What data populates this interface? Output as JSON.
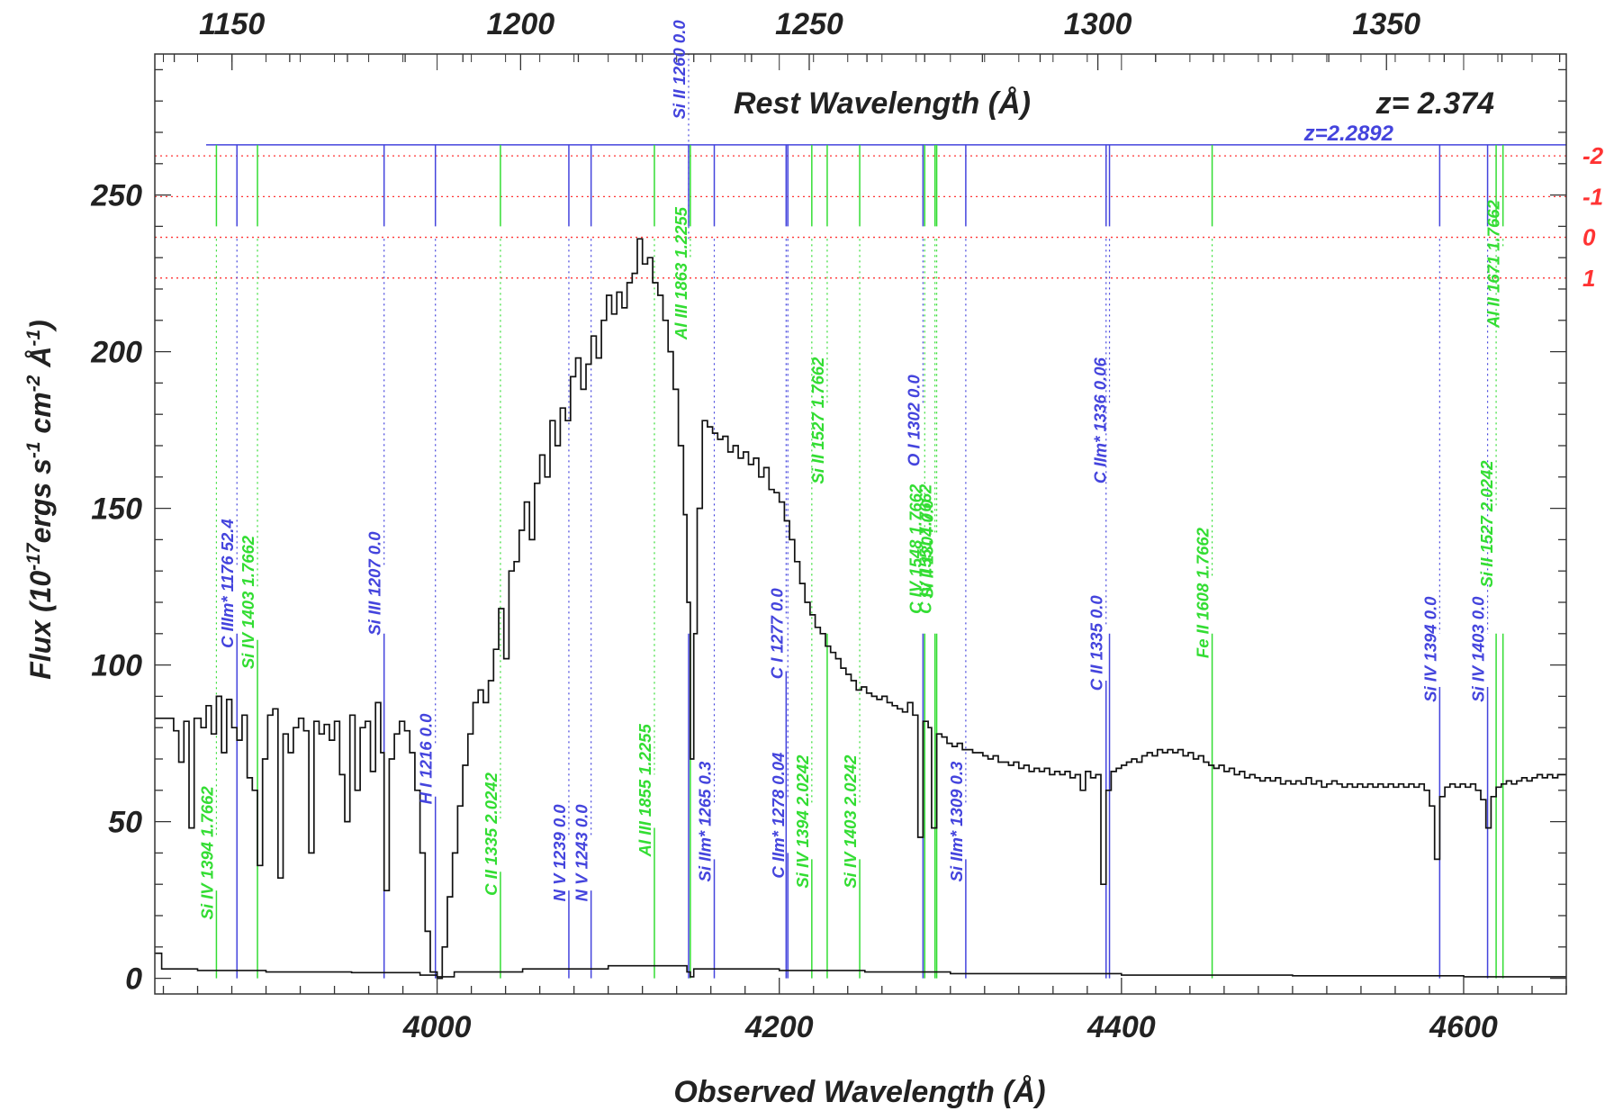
{
  "chart_data": {
    "type": "line",
    "xlabel": "Observed Wavelength (Å)",
    "ylabel": "Flux (10^-17 ergs s^-1 cm^-2 Å^-1)",
    "top_axis_label": "Rest Wavelength (Å)",
    "redshift_label": "z= 2.374",
    "absorber_label": "z=2.2892",
    "redshift": 2.374,
    "xlim": [
      3835,
      4660
    ],
    "ylim": [
      -5,
      295
    ],
    "x_ticks": [
      4000,
      4200,
      4400,
      4600
    ],
    "y_ticks": [
      0,
      50,
      100,
      150,
      200,
      250
    ],
    "top_ticks": [
      1150,
      1200,
      1250,
      1300,
      1350
    ],
    "sigma_levels": [
      {
        "label": "-2",
        "y": 262.5
      },
      {
        "label": "-1",
        "y": 249.5
      },
      {
        "label": "0",
        "y": 236.5
      },
      {
        "label": "1",
        "y": 223.5
      }
    ],
    "spectrum": {
      "name": "flux",
      "points": [
        [
          3835,
          83
        ],
        [
          3842,
          83
        ],
        [
          3846,
          79
        ],
        [
          3849,
          69
        ],
        [
          3852,
          82
        ],
        [
          3855,
          48
        ],
        [
          3858,
          83
        ],
        [
          3862,
          80
        ],
        [
          3865,
          87
        ],
        [
          3868,
          78
        ],
        [
          3871,
          90
        ],
        [
          3874,
          72
        ],
        [
          3877,
          89
        ],
        [
          3880,
          80
        ],
        [
          3883,
          76
        ],
        [
          3886,
          84
        ],
        [
          3889,
          64
        ],
        [
          3892,
          60
        ],
        [
          3895,
          36
        ],
        [
          3898,
          70
        ],
        [
          3901,
          84
        ],
        [
          3904,
          86
        ],
        [
          3907,
          32
        ],
        [
          3910,
          78
        ],
        [
          3913,
          72
        ],
        [
          3916,
          80
        ],
        [
          3919,
          83
        ],
        [
          3922,
          79
        ],
        [
          3925,
          40
        ],
        [
          3928,
          82
        ],
        [
          3931,
          78
        ],
        [
          3934,
          81
        ],
        [
          3937,
          76
        ],
        [
          3940,
          82
        ],
        [
          3943,
          65
        ],
        [
          3946,
          50
        ],
        [
          3949,
          84
        ],
        [
          3952,
          60
        ],
        [
          3955,
          80
        ],
        [
          3958,
          82
        ],
        [
          3961,
          66
        ],
        [
          3964,
          88
        ],
        [
          3967,
          72
        ],
        [
          3969,
          28
        ],
        [
          3972,
          70
        ],
        [
          3975,
          78
        ],
        [
          3978,
          82
        ],
        [
          3981,
          79
        ],
        [
          3984,
          72
        ],
        [
          3987,
          60
        ],
        [
          3990,
          40
        ],
        [
          3993,
          15
        ],
        [
          3996,
          2
        ],
        [
          4000,
          0
        ],
        [
          4003,
          10
        ],
        [
          4006,
          26
        ],
        [
          4009,
          40
        ],
        [
          4012,
          55
        ],
        [
          4015,
          68
        ],
        [
          4018,
          78
        ],
        [
          4021,
          88
        ],
        [
          4024,
          92
        ],
        [
          4027,
          88
        ],
        [
          4030,
          95
        ],
        [
          4033,
          105
        ],
        [
          4036,
          118
        ],
        [
          4039,
          102
        ],
        [
          4042,
          130
        ],
        [
          4045,
          133
        ],
        [
          4048,
          143
        ],
        [
          4051,
          152
        ],
        [
          4054,
          140
        ],
        [
          4057,
          158
        ],
        [
          4060,
          167
        ],
        [
          4063,
          160
        ],
        [
          4066,
          178
        ],
        [
          4069,
          170
        ],
        [
          4072,
          182
        ],
        [
          4075,
          178
        ],
        [
          4078,
          192
        ],
        [
          4081,
          198
        ],
        [
          4084,
          188
        ],
        [
          4087,
          196
        ],
        [
          4090,
          205
        ],
        [
          4093,
          198
        ],
        [
          4096,
          210
        ],
        [
          4099,
          218
        ],
        [
          4102,
          212
        ],
        [
          4105,
          219
        ],
        [
          4108,
          214
        ],
        [
          4111,
          222
        ],
        [
          4114,
          225
        ],
        [
          4117,
          236
        ],
        [
          4120,
          228
        ],
        [
          4123,
          230
        ],
        [
          4126,
          222
        ],
        [
          4129,
          218
        ],
        [
          4132,
          210
        ],
        [
          4135,
          200
        ],
        [
          4138,
          188
        ],
        [
          4141,
          170
        ],
        [
          4144,
          148
        ],
        [
          4146,
          120
        ],
        [
          4148,
          70
        ],
        [
          4150,
          110
        ],
        [
          4152,
          150
        ],
        [
          4155,
          178
        ],
        [
          4158,
          176
        ],
        [
          4161,
          174
        ],
        [
          4164,
          172
        ],
        [
          4167,
          173
        ],
        [
          4170,
          168
        ],
        [
          4173,
          170
        ],
        [
          4176,
          166
        ],
        [
          4179,
          168
        ],
        [
          4182,
          164
        ],
        [
          4185,
          166
        ],
        [
          4188,
          160
        ],
        [
          4191,
          163
        ],
        [
          4194,
          156
        ],
        [
          4197,
          155
        ],
        [
          4200,
          152
        ],
        [
          4203,
          146
        ],
        [
          4206,
          140
        ],
        [
          4209,
          133
        ],
        [
          4212,
          126
        ],
        [
          4215,
          120
        ],
        [
          4218,
          116
        ],
        [
          4221,
          112
        ],
        [
          4224,
          110
        ],
        [
          4227,
          106
        ],
        [
          4230,
          104
        ],
        [
          4233,
          102
        ],
        [
          4236,
          99
        ],
        [
          4239,
          97
        ],
        [
          4242,
          95
        ],
        [
          4245,
          92
        ],
        [
          4248,
          93
        ],
        [
          4251,
          91
        ],
        [
          4254,
          90
        ],
        [
          4257,
          89
        ],
        [
          4260,
          90
        ],
        [
          4263,
          88
        ],
        [
          4266,
          87
        ],
        [
          4269,
          86
        ],
        [
          4272,
          85
        ],
        [
          4275,
          88
        ],
        [
          4278,
          84
        ],
        [
          4281,
          45
        ],
        [
          4284,
          82
        ],
        [
          4287,
          80
        ],
        [
          4289,
          48
        ],
        [
          4292,
          78
        ],
        [
          4295,
          77
        ],
        [
          4298,
          75
        ],
        [
          4301,
          74
        ],
        [
          4304,
          75
        ],
        [
          4307,
          73
        ],
        [
          4310,
          73
        ],
        [
          4313,
          72
        ],
        [
          4316,
          72
        ],
        [
          4319,
          71
        ],
        [
          4322,
          70
        ],
        [
          4325,
          71
        ],
        [
          4328,
          69
        ],
        [
          4331,
          69
        ],
        [
          4334,
          68
        ],
        [
          4337,
          69
        ],
        [
          4340,
          67
        ],
        [
          4343,
          68
        ],
        [
          4346,
          66
        ],
        [
          4349,
          67
        ],
        [
          4352,
          66
        ],
        [
          4355,
          67
        ],
        [
          4358,
          65
        ],
        [
          4361,
          66
        ],
        [
          4364,
          65
        ],
        [
          4367,
          66
        ],
        [
          4370,
          64
        ],
        [
          4373,
          65
        ],
        [
          4376,
          60
        ],
        [
          4379,
          66
        ],
        [
          4382,
          64
        ],
        [
          4385,
          65
        ],
        [
          4388,
          30
        ],
        [
          4391,
          60
        ],
        [
          4394,
          66
        ],
        [
          4397,
          67
        ],
        [
          4400,
          68
        ],
        [
          4403,
          69
        ],
        [
          4406,
          70
        ],
        [
          4409,
          69
        ],
        [
          4412,
          71
        ],
        [
          4415,
          72
        ],
        [
          4418,
          71
        ],
        [
          4421,
          73
        ],
        [
          4424,
          72
        ],
        [
          4427,
          73
        ],
        [
          4430,
          72
        ],
        [
          4433,
          73
        ],
        [
          4436,
          71
        ],
        [
          4439,
          72
        ],
        [
          4442,
          70
        ],
        [
          4445,
          71
        ],
        [
          4448,
          69
        ],
        [
          4451,
          68
        ],
        [
          4454,
          67
        ],
        [
          4457,
          68
        ],
        [
          4460,
          66
        ],
        [
          4463,
          67
        ],
        [
          4466,
          65
        ],
        [
          4469,
          66
        ],
        [
          4472,
          64
        ],
        [
          4475,
          65
        ],
        [
          4478,
          64
        ],
        [
          4481,
          63
        ],
        [
          4484,
          64
        ],
        [
          4487,
          63
        ],
        [
          4490,
          64
        ],
        [
          4493,
          62
        ],
        [
          4496,
          63
        ],
        [
          4499,
          62
        ],
        [
          4502,
          63
        ],
        [
          4505,
          62
        ],
        [
          4508,
          64
        ],
        [
          4511,
          62
        ],
        [
          4514,
          63
        ],
        [
          4517,
          61
        ],
        [
          4520,
          62
        ],
        [
          4523,
          63
        ],
        [
          4526,
          62
        ],
        [
          4529,
          61
        ],
        [
          4532,
          62
        ],
        [
          4535,
          61
        ],
        [
          4538,
          62
        ],
        [
          4541,
          61
        ],
        [
          4544,
          62
        ],
        [
          4547,
          61
        ],
        [
          4550,
          62
        ],
        [
          4553,
          61
        ],
        [
          4556,
          62
        ],
        [
          4559,
          61
        ],
        [
          4562,
          62
        ],
        [
          4565,
          61
        ],
        [
          4568,
          62
        ],
        [
          4571,
          61
        ],
        [
          4574,
          62
        ],
        [
          4577,
          60
        ],
        [
          4580,
          55
        ],
        [
          4583,
          38
        ],
        [
          4586,
          58
        ],
        [
          4589,
          61
        ],
        [
          4592,
          62
        ],
        [
          4595,
          61
        ],
        [
          4598,
          62
        ],
        [
          4601,
          61
        ],
        [
          4604,
          62
        ],
        [
          4607,
          60
        ],
        [
          4610,
          57
        ],
        [
          4613,
          48
        ],
        [
          4616,
          58
        ],
        [
          4619,
          61
        ],
        [
          4622,
          62
        ],
        [
          4625,
          63
        ],
        [
          4628,
          62
        ],
        [
          4631,
          63
        ],
        [
          4634,
          64
        ],
        [
          4637,
          63
        ],
        [
          4640,
          64
        ],
        [
          4643,
          65
        ],
        [
          4646,
          64
        ],
        [
          4649,
          65
        ],
        [
          4652,
          64
        ],
        [
          4655,
          65
        ],
        [
          4660,
          65
        ]
      ]
    },
    "error_spectrum": {
      "name": "error",
      "points": [
        [
          3835,
          8
        ],
        [
          3838,
          8
        ],
        [
          3839,
          3
        ],
        [
          3860,
          2.5
        ],
        [
          3900,
          2
        ],
        [
          3950,
          1.8
        ],
        [
          3990,
          1
        ],
        [
          4000,
          0.5
        ],
        [
          4010,
          2
        ],
        [
          4050,
          3
        ],
        [
          4100,
          4
        ],
        [
          4120,
          4
        ],
        [
          4146,
          2
        ],
        [
          4148,
          0.5
        ],
        [
          4150,
          3
        ],
        [
          4200,
          2.5
        ],
        [
          4250,
          2
        ],
        [
          4300,
          1.5
        ],
        [
          4400,
          1
        ],
        [
          4500,
          0.8
        ],
        [
          4600,
          0.5
        ],
        [
          4660,
          0.5
        ]
      ]
    },
    "line_markers": [
      {
        "x": 3871,
        "color": "#33dd33",
        "label": "Si IV 1394 1.7662",
        "label_y": 40
      },
      {
        "x": 3883,
        "color": "#4444dd",
        "label": "C IIIm* 1176 52.4",
        "label_y": 126
      },
      {
        "x": 3895,
        "color": "#33dd33",
        "label": "Si IV 1403 1.7662",
        "label_y": 120
      },
      {
        "x": 3969,
        "color": "#4444dd",
        "label": "Si III 1207 0.0",
        "label_y": 126
      },
      {
        "x": 3999,
        "color": "#4444dd",
        "label": "H I 1216 0.0",
        "label_y": 70
      },
      {
        "x": 4037,
        "color": "#33dd33",
        "label": "C II 1335 2.0242",
        "label_y": 46
      },
      {
        "x": 4077,
        "color": "#4444dd",
        "label": "N V 1239 0.0",
        "label_y": 40
      },
      {
        "x": 4090,
        "color": "#4444dd",
        "label": "N V 1243 0.0",
        "label_y": 40
      },
      {
        "x": 4127,
        "color": "#33dd33",
        "label": "Al III 1855 1.2255",
        "label_y": 60
      },
      {
        "x": 4147,
        "color": "#4444dd",
        "label": "Si II 1260 0.0",
        "label_y": 290
      },
      {
        "x": 4148,
        "color": "#33dd33",
        "label": "Al III 1863 1.2255",
        "label_y": 225
      },
      {
        "x": 4162,
        "color": "#4444dd",
        "label": "Si IIm* 1265 0.3",
        "label_y": 50
      },
      {
        "x": 4204,
        "color": "#4444dd",
        "label": "C I 1277 0.0",
        "label_y": 110
      },
      {
        "x": 4205,
        "color": "#4444dd",
        "label": "C IIm* 1278 0.04",
        "label_y": 52
      },
      {
        "x": 4219,
        "color": "#33dd33",
        "label": "Si IV 1394 2.0242",
        "label_y": 50
      },
      {
        "x": 4228,
        "color": "#33dd33",
        "label": "Si II 1527 1.7662",
        "label_y": 178
      },
      {
        "x": 4247,
        "color": "#33dd33",
        "label": "Si IV 1403 2.0242",
        "label_y": 50
      },
      {
        "x": 4284,
        "color": "#4444dd",
        "label": "O I 1302 0.0",
        "label_y": 178
      },
      {
        "x": 4285,
        "color": "#33dd33",
        "label": "C IV 1548 1.7662",
        "label_y": 137
      },
      {
        "x": 4291,
        "color": "#33dd33",
        "label": "C IV 1551 1.7662",
        "label_y": 137
      },
      {
        "x": 4292,
        "color": "#33dd33",
        "label": "Si II 1304 0.0",
        "label_y": 137
      },
      {
        "x": 4309,
        "color": "#4444dd",
        "label": "Si IIm* 1309 0.3",
        "label_y": 50
      },
      {
        "x": 4391,
        "color": "#4444dd",
        "label": "C II 1335 0.0",
        "label_y": 107
      },
      {
        "x": 4393,
        "color": "#4444dd",
        "label": "C IIm* 1336 0.06",
        "label_y": 178
      },
      {
        "x": 4453,
        "color": "#33dd33",
        "label": "Fe II 1608 1.7662",
        "label_y": 123
      },
      {
        "x": 4586,
        "color": "#4444dd",
        "label": "Si IV 1394 0.0",
        "label_y": 105
      },
      {
        "x": 4614,
        "color": "#4444dd",
        "label": "Si IV 1403 0.0",
        "label_y": 105
      },
      {
        "x": 4619,
        "color": "#33dd33",
        "label": "Si II 1527 2.0242",
        "label_y": 145
      },
      {
        "x": 4623,
        "color": "#33dd33",
        "label": "Al II 1671 1.7662",
        "label_y": 228
      }
    ]
  }
}
